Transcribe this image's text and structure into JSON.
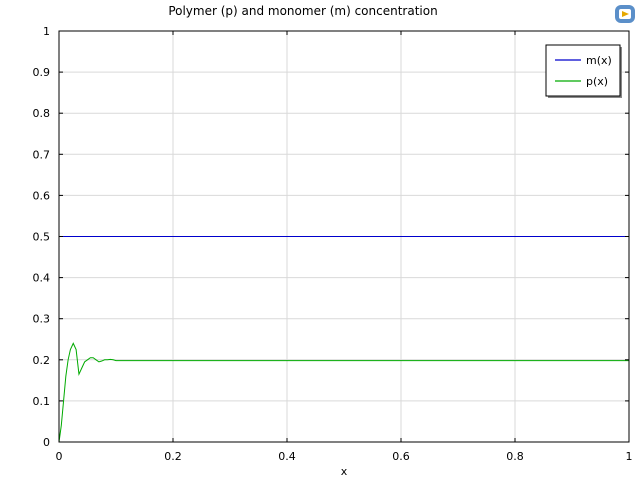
{
  "chart_data": {
    "type": "line",
    "title": "Polymer (p) and monomer (m) concentration",
    "xlabel": "x",
    "ylabel": "",
    "xlim": [
      0,
      1
    ],
    "ylim": [
      0,
      1
    ],
    "xticks": [
      "0",
      "0.2",
      "0.4",
      "0.6",
      "0.8",
      "1"
    ],
    "yticks": [
      "0",
      "0.1",
      "0.2",
      "0.3",
      "0.4",
      "0.5",
      "0.6",
      "0.7",
      "0.8",
      "0.9",
      "1"
    ],
    "grid": true,
    "legend_position": "top-right",
    "series": [
      {
        "name": "m(x)",
        "color": "#0000cc",
        "x": [
          0,
          1
        ],
        "y": [
          0.5,
          0.5
        ]
      },
      {
        "name": "p(x)",
        "color": "#00aa00",
        "x": [
          0,
          0.004,
          0.008,
          0.012,
          0.016,
          0.02,
          0.025,
          0.03,
          0.035,
          0.04,
          0.045,
          0.05,
          0.055,
          0.06,
          0.065,
          0.07,
          0.075,
          0.08,
          0.085,
          0.09,
          0.095,
          0.1,
          0.12,
          0.15,
          0.2,
          0.3,
          0.5,
          0.7,
          0.9,
          1.0
        ],
        "y": [
          0,
          0.04,
          0.1,
          0.16,
          0.2,
          0.225,
          0.24,
          0.225,
          0.165,
          0.18,
          0.195,
          0.2,
          0.205,
          0.205,
          0.2,
          0.195,
          0.197,
          0.2,
          0.2,
          0.201,
          0.2,
          0.198,
          0.198,
          0.198,
          0.198,
          0.198,
          0.198,
          0.198,
          0.198,
          0.198
        ]
      }
    ]
  },
  "icon": {
    "name": "comsol-logo-icon"
  }
}
